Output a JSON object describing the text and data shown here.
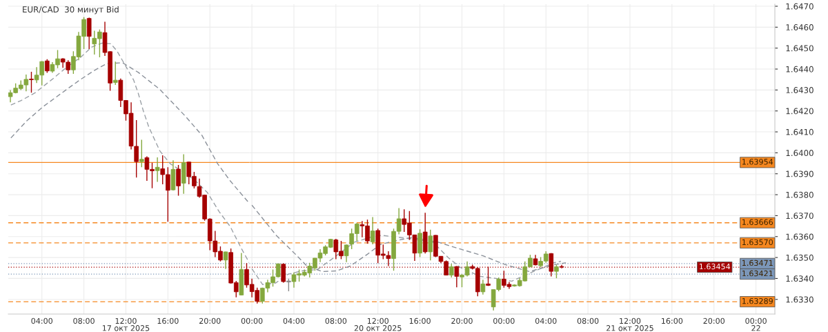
{
  "chart_data": [
    {
      "type": "candlestick",
      "title": "EUR/CAD  30 минут Bid",
      "x": [
        "2025-10-17T01:00",
        "2025-10-17T01:30",
        "2025-10-17T02:00",
        "2025-10-17T02:30",
        "2025-10-17T03:00",
        "2025-10-17T03:30",
        "2025-10-17T04:00",
        "2025-10-17T04:30",
        "2025-10-17T05:00",
        "2025-10-17T05:30",
        "2025-10-17T06:00",
        "2025-10-17T06:30",
        "2025-10-17T07:00",
        "2025-10-17T07:30",
        "2025-10-17T08:00",
        "2025-10-17T08:30",
        "2025-10-17T09:00",
        "2025-10-17T09:30",
        "2025-10-17T10:00",
        "2025-10-17T10:30",
        "2025-10-17T11:00",
        "2025-10-17T11:30",
        "2025-10-17T12:00",
        "2025-10-17T12:30",
        "2025-10-17T13:00",
        "2025-10-17T13:30",
        "2025-10-17T14:00",
        "2025-10-17T14:30",
        "2025-10-17T15:00",
        "2025-10-17T15:30",
        "2025-10-17T16:00",
        "2025-10-17T16:30",
        "2025-10-17T17:00",
        "2025-10-17T17:30",
        "2025-10-17T18:00",
        "2025-10-17T18:30",
        "2025-10-17T19:00",
        "2025-10-17T19:30",
        "2025-10-17T20:00",
        "2025-10-17T20:30",
        "2025-10-17T21:00",
        "2025-10-17T21:30",
        "2025-10-17T22:00",
        "2025-10-17T22:30",
        "2025-10-17T23:00",
        "2025-10-17T23:30"
      ],
      "ohlc": [
        [
          1.64268,
          1.643,
          1.64241,
          1.64287
        ],
        [
          1.64287,
          1.64332,
          1.64284,
          1.64309
        ],
        [
          1.64307,
          1.64346,
          1.643,
          1.64324
        ],
        [
          1.64324,
          1.64374,
          1.64294,
          1.64351
        ],
        [
          1.64352,
          1.64387,
          1.64287,
          1.64349
        ],
        [
          1.64348,
          1.64409,
          1.64333,
          1.64371
        ],
        [
          1.64371,
          1.64438,
          1.64322,
          1.64436
        ],
        [
          1.64439,
          1.64447,
          1.64382,
          1.64391
        ],
        [
          1.6439,
          1.64433,
          1.64382,
          1.64422
        ],
        [
          1.6442,
          1.64491,
          1.64404,
          1.64449
        ],
        [
          1.64449,
          1.64452,
          1.64406,
          1.64433
        ],
        [
          1.64433,
          1.64442,
          1.64377,
          1.64396
        ],
        [
          1.64396,
          1.64485,
          1.64377,
          1.6446
        ],
        [
          1.64458,
          1.64577,
          1.64442,
          1.64558
        ],
        [
          1.64556,
          1.64648,
          1.64496,
          1.64637
        ],
        [
          1.64642,
          1.64646,
          1.64496,
          1.64556
        ],
        [
          1.6452,
          1.64583,
          1.64469,
          1.64547
        ],
        [
          1.64545,
          1.64589,
          1.64456,
          1.64577
        ],
        [
          1.64574,
          1.64626,
          1.64463,
          1.64479
        ],
        [
          1.64483,
          1.64485,
          1.64296,
          1.64333
        ],
        [
          1.64336,
          1.64436,
          1.64324,
          1.64347
        ],
        [
          1.64347,
          1.64355,
          1.64219,
          1.6425
        ],
        [
          1.6425,
          1.64251,
          1.64154,
          1.64186
        ],
        [
          1.64189,
          1.64241,
          1.64016,
          1.64032
        ],
        [
          1.64031,
          1.64156,
          1.63882,
          1.63958
        ],
        [
          1.63958,
          1.64062,
          1.63931,
          1.63969
        ],
        [
          1.63977,
          1.63983,
          1.63866,
          1.63921
        ],
        [
          1.63921,
          1.63953,
          1.63831,
          1.63914
        ],
        [
          1.63915,
          1.63978,
          1.63861,
          1.63931
        ],
        [
          1.63924,
          1.63988,
          1.6385,
          1.63896
        ],
        [
          1.63896,
          1.63931,
          1.63671,
          1.63821
        ],
        [
          1.63823,
          1.63964,
          1.6382,
          1.63921
        ],
        [
          1.63922,
          1.63942,
          1.63795,
          1.63842
        ],
        [
          1.63855,
          1.63993,
          1.63804,
          1.63953
        ],
        [
          1.63956,
          1.63958,
          1.6385,
          1.63886
        ],
        [
          1.63888,
          1.63909,
          1.6383,
          1.63842
        ],
        [
          1.63839,
          1.63877,
          1.63785,
          1.63792
        ],
        [
          1.63798,
          1.638,
          1.63676,
          1.63684
        ],
        [
          1.63684,
          1.63687,
          1.63535,
          1.63579
        ],
        [
          1.63579,
          1.63627,
          1.63502,
          1.63527
        ],
        [
          1.6353,
          1.63553,
          1.63481,
          1.63488
        ],
        [
          1.63488,
          1.63528,
          1.63445,
          1.63527
        ],
        [
          1.63524,
          1.63543,
          1.63376,
          1.63378
        ],
        [
          1.6338,
          1.63388,
          1.6331,
          1.63336
        ],
        [
          1.63321,
          1.63522,
          1.63319,
          1.63443
        ],
        [
          1.63443,
          1.63473,
          1.63356,
          1.63369
        ]
      ],
      "colors": [
        "#84a83e",
        "#84a83e",
        "#84a83e",
        "#84a83e",
        "#a50000",
        "#84a83e",
        "#84a83e",
        "#a50000",
        "#84a83e",
        "#84a83e",
        "#a50000",
        "#a50000",
        "#84a83e",
        "#84a83e",
        "#84a83e",
        "#a50000",
        "#84a83e",
        "#84a83e",
        "#a50000",
        "#a50000",
        "#84a83e",
        "#a50000",
        "#a50000",
        "#a50000",
        "#a50000",
        "#84a83e",
        "#a50000",
        "#a50000",
        "#84a83e",
        "#a50000",
        "#a50000",
        "#84a83e",
        "#a50000",
        "#84a83e",
        "#a50000",
        "#a50000",
        "#a50000",
        "#a50000",
        "#a50000",
        "#a50000",
        "#a50000",
        "#84a83e",
        "#a50000",
        "#a50000",
        "#84a83e",
        "#a50000"
      ],
      "series": [
        {
          "type": "line",
          "color": "#9aa0a6",
          "x": [
            "2025-10-17T01:03",
            "2025-10-17T02:02",
            "2025-10-17T03:20",
            "2025-10-17T04:59",
            "2025-10-17T06:15",
            "2025-10-17T07:45",
            "2025-10-17T08:45",
            "2025-10-17T09:45",
            "2025-10-17T10:34",
            "2025-10-17T11:10",
            "2025-10-17T11:57",
            "2025-10-17T12:44",
            "2025-10-17T13:11",
            "2025-10-17T13:39",
            "2025-10-17T14:11",
            "2025-10-17T15:14",
            "2025-10-17T16:13",
            "2025-10-17T17:45",
            "2025-10-17T18:45",
            "2025-10-17T19:45",
            "2025-10-17T20:52",
            "2025-10-17T21:56",
            "2025-10-17T23:02",
            "2025-10-17T23:45"
          ],
          "values": [
            1.64228,
            1.6425,
            1.64286,
            1.64351,
            1.64404,
            1.64459,
            1.64505,
            1.64524,
            1.64521,
            1.64485,
            1.64417,
            1.64348,
            1.64283,
            1.64202,
            1.64123,
            1.64009,
            1.63948,
            1.63899,
            1.6386,
            1.63811,
            1.6372,
            1.63648,
            1.6354,
            1.63475
          ]
        },
        {
          "type": "line",
          "color": "#8a9099",
          "x": [
            "2025-10-17T01:03",
            "2025-10-17T02:34",
            "2025-10-17T04:08",
            "2025-10-17T06:22",
            "2025-10-17T07:37",
            "2025-10-17T08:55",
            "2025-10-17T10:10",
            "2025-10-17T11:41",
            "2025-10-17T13:11",
            "2025-10-17T15:14",
            "2025-10-17T17:43",
            "2025-10-17T19:14",
            "2025-10-17T20:44",
            "2025-10-17T21:56",
            "2025-10-17T23:45"
          ],
          "values": [
            1.64071,
            1.64153,
            1.64221,
            1.64303,
            1.64348,
            1.64391,
            1.64426,
            1.6443,
            1.64384,
            1.64303,
            1.64172,
            1.64084,
            1.63948,
            1.63866,
            1.63759
          ]
        }
      ],
      "line_style": "dashed",
      "xlim": [
        "2025-10-17T00:48",
        "2025-10-17T23:45"
      ],
      "xticks": [
        {
          "value": "2025-10-17T04:00",
          "label": "04:00"
        },
        {
          "value": "2025-10-17T08:00",
          "label": "08:00"
        },
        {
          "value": "2025-10-17T12:00",
          "label": "12:00\n17 окт 2025"
        },
        {
          "value": "2025-10-17T16:00",
          "label": "16:00"
        },
        {
          "value": "2025-10-17T20:00",
          "label": "20:00"
        }
      ],
      "ylim": [
        1.6323,
        1.6471
      ],
      "yticks": [
        1.633,
        1.634,
        1.635,
        1.636,
        1.637,
        1.638,
        1.639,
        1.64,
        1.641,
        1.642,
        1.643,
        1.644,
        1.645,
        1.646,
        1.647
      ],
      "tick_labels": "x",
      "ref_lines": [
        {
          "axis": "y",
          "value": 1.63954,
          "color": "#f5871f",
          "line_style": "solid"
        },
        {
          "axis": "y",
          "value": 1.63666,
          "color": "#f5871f",
          "line_style": "dashed"
        },
        {
          "axis": "y",
          "value": 1.6357,
          "color": "#f5871f",
          "line_style": "dashed"
        },
        {
          "axis": "y",
          "value": 1.63471,
          "color": "#7b96b8",
          "line_style": "dotted"
        },
        {
          "axis": "y",
          "value": 1.63454,
          "color": "#a50000",
          "line_style": "dotted"
        },
        {
          "axis": "y",
          "value": 1.63421,
          "color": "#7b96b8",
          "line_style": "dotted"
        },
        {
          "axis": "y",
          "value": 1.63289,
          "color": "#f5871f",
          "line_style": "dashed"
        }
      ],
      "grid": true
    },
    {
      "type": "candlestick",
      "x": [
        "2025-10-20T00:00",
        "2025-10-20T00:30",
        "2025-10-20T01:00",
        "2025-10-20T01:30",
        "2025-10-20T02:00",
        "2025-10-20T02:30",
        "2025-10-20T03:00",
        "2025-10-20T03:30",
        "2025-10-20T04:00",
        "2025-10-20T04:30",
        "2025-10-20T05:00",
        "2025-10-20T05:30",
        "2025-10-20T06:00",
        "2025-10-20T06:30",
        "2025-10-20T07:00",
        "2025-10-20T07:30",
        "2025-10-20T08:00",
        "2025-10-20T08:30",
        "2025-10-20T09:00",
        "2025-10-20T09:30",
        "2025-10-20T10:00",
        "2025-10-20T10:30",
        "2025-10-20T11:00",
        "2025-10-20T11:30",
        "2025-10-20T12:00",
        "2025-10-20T12:30",
        "2025-10-20T13:00",
        "2025-10-20T13:30",
        "2025-10-20T14:00",
        "2025-10-20T14:30",
        "2025-10-20T15:00",
        "2025-10-20T15:30",
        "2025-10-20T16:00",
        "2025-10-20T16:30",
        "2025-10-20T17:00",
        "2025-10-20T17:30",
        "2025-10-20T18:00",
        "2025-10-20T18:30",
        "2025-10-20T19:00",
        "2025-10-20T19:30",
        "2025-10-20T20:00",
        "2025-10-20T20:30",
        "2025-10-20T21:00",
        "2025-10-20T21:30",
        "2025-10-20T22:00",
        "2025-10-20T22:30",
        "2025-10-20T23:00",
        "2025-10-20T23:30",
        "2025-10-21T00:00",
        "2025-10-21T00:30",
        "2025-10-21T01:00",
        "2025-10-21T01:30",
        "2025-10-21T02:00",
        "2025-10-21T02:30",
        "2025-10-21T03:00",
        "2025-10-21T03:30",
        "2025-10-21T04:00",
        "2025-10-21T04:30",
        "2025-10-21T05:00",
        "2025-10-21T05:30"
      ],
      "ohlc": [
        [
          1.63372,
          1.63399,
          1.6331,
          1.63337
        ],
        [
          1.63343,
          1.63356,
          1.6328,
          1.63291
        ],
        [
          1.63291,
          1.63356,
          1.6328,
          1.63354
        ],
        [
          1.63354,
          1.63394,
          1.63334,
          1.6338
        ],
        [
          1.6338,
          1.63443,
          1.63361,
          1.63408
        ],
        [
          1.63408,
          1.63471,
          1.63405,
          1.6347
        ],
        [
          1.63468,
          1.63472,
          1.6338,
          1.63385
        ],
        [
          1.63383,
          1.63399,
          1.63339,
          1.63388
        ],
        [
          1.63385,
          1.63429,
          1.63356,
          1.63418
        ],
        [
          1.63416,
          1.63443,
          1.63385,
          1.63423
        ],
        [
          1.63416,
          1.63443,
          1.6341,
          1.6343
        ],
        [
          1.63426,
          1.63475,
          1.63405,
          1.63459
        ],
        [
          1.6345,
          1.63498,
          1.63437,
          1.63497
        ],
        [
          1.63497,
          1.6354,
          1.63478,
          1.63522
        ],
        [
          1.63519,
          1.63559,
          1.6351,
          1.63551
        ],
        [
          1.63549,
          1.63589,
          1.63546,
          1.63587
        ],
        [
          1.63584,
          1.63589,
          1.63492,
          1.63527
        ],
        [
          1.6353,
          1.63579,
          1.63492,
          1.63508
        ],
        [
          1.63508,
          1.63562,
          1.63478,
          1.6356
        ],
        [
          1.63564,
          1.63638,
          1.6354,
          1.63614
        ],
        [
          1.63614,
          1.63665,
          1.63579,
          1.6366
        ],
        [
          1.63657,
          1.63674,
          1.63597,
          1.63651
        ],
        [
          1.63651,
          1.63681,
          1.63566,
          1.63579
        ],
        [
          1.63575,
          1.63693,
          1.63563,
          1.63627
        ],
        [
          1.63629,
          1.63638,
          1.63473,
          1.63511
        ],
        [
          1.63517,
          1.63562,
          1.63492,
          1.6351
        ],
        [
          1.6351,
          1.6353,
          1.63459,
          1.63495
        ],
        [
          1.63495,
          1.63638,
          1.63437,
          1.63625
        ],
        [
          1.63625,
          1.63736,
          1.63611,
          1.63685
        ],
        [
          1.63685,
          1.6373,
          1.63622,
          1.63658
        ],
        [
          1.63665,
          1.63722,
          1.63584,
          1.63608
        ],
        [
          1.63608,
          1.63609,
          1.63484,
          1.63521
        ],
        [
          1.63521,
          1.63635,
          1.63502,
          1.63616
        ],
        [
          1.63622,
          1.63714,
          1.63519,
          1.63527
        ],
        [
          1.63527,
          1.63633,
          1.63486,
          1.63603
        ],
        [
          1.63606,
          1.63607,
          1.63502,
          1.63506
        ],
        [
          1.63506,
          1.63507,
          1.63473,
          1.63481
        ],
        [
          1.63481,
          1.63486,
          1.63415,
          1.63416
        ],
        [
          1.63416,
          1.6347,
          1.63405,
          1.63456
        ],
        [
          1.63457,
          1.63459,
          1.63358,
          1.6341
        ],
        [
          1.63407,
          1.63421,
          1.63358,
          1.63416
        ],
        [
          1.63416,
          1.63481,
          1.6341,
          1.63456
        ],
        [
          1.63457,
          1.63466,
          1.63443,
          1.63448
        ],
        [
          1.63448,
          1.63453,
          1.63315,
          1.63336
        ],
        [
          1.63336,
          1.63394,
          1.63323,
          1.63374
        ],
        [
          1.63374,
          1.63456,
          1.63364,
          1.63367
        ],
        [
          1.63264,
          1.63348,
          1.63247,
          1.63347
        ],
        [
          1.63347,
          1.63405,
          1.63339,
          1.63397
        ],
        [
          1.63397,
          1.63437,
          1.63356,
          1.63367
        ],
        [
          1.63372,
          1.63383,
          1.6335,
          1.63361
        ],
        [
          1.63364,
          1.63372,
          1.63361,
          1.63369
        ],
        [
          1.63365,
          1.63401,
          1.63361,
          1.63391
        ],
        [
          1.63388,
          1.63481,
          1.63386,
          1.63456
        ],
        [
          1.63456,
          1.63513,
          1.63453,
          1.63497
        ],
        [
          1.63494,
          1.63513,
          1.63462,
          1.63465
        ],
        [
          1.63461,
          1.63502,
          1.63453,
          1.63482
        ],
        [
          1.63483,
          1.6353,
          1.63475,
          1.63517
        ],
        [
          1.63519,
          1.63521,
          1.6341,
          1.63434
        ],
        [
          1.63434,
          1.63465,
          1.63401,
          1.63456
        ],
        [
          1.63457,
          1.63465,
          1.63448,
          1.63454
        ]
      ],
      "colors": [
        "#a50000",
        "#a50000",
        "#84a83e",
        "#84a83e",
        "#84a83e",
        "#84a83e",
        "#a50000",
        "#8a8a8a",
        "#84a83e",
        "#84a83e",
        "#84a83e",
        "#84a83e",
        "#84a83e",
        "#84a83e",
        "#84a83e",
        "#84a83e",
        "#a50000",
        "#a50000",
        "#84a83e",
        "#84a83e",
        "#84a83e",
        "#a50000",
        "#a50000",
        "#84a83e",
        "#a50000",
        "#a50000",
        "#a50000",
        "#84a83e",
        "#84a83e",
        "#a50000",
        "#a50000",
        "#a50000",
        "#84a83e",
        "#a50000",
        "#84a83e",
        "#a50000",
        "#a50000",
        "#a50000",
        "#84a83e",
        "#a50000",
        "#84a83e",
        "#84a83e",
        "#a50000",
        "#a50000",
        "#84a83e",
        "#a50000",
        "#84a83e",
        "#84a83e",
        "#a50000",
        "#a50000",
        "#84a83e",
        "#84a83e",
        "#84a83e",
        "#84a83e",
        "#a50000",
        "#84a83e",
        "#84a83e",
        "#a50000",
        "#84a83e",
        "#a50000"
      ],
      "series": [
        {
          "type": "line",
          "color": "#9aa0a6",
          "x": [
            "2025-10-20T00:00",
            "2025-10-20T01:01",
            "2025-10-20T02:15",
            "2025-10-20T03:26",
            "2025-10-20T04:45",
            "2025-10-20T06:15",
            "2025-10-20T07:46",
            "2025-10-20T09:45",
            "2025-10-20T11:15",
            "2025-10-20T12:22",
            "2025-10-20T13:57",
            "2025-10-20T15:15",
            "2025-10-20T17:15",
            "2025-10-20T18:44",
            "2025-10-20T19:52",
            "2025-10-20T21:45",
            "2025-10-20T23:15",
            "2025-10-21T00:45",
            "2025-10-21T01:45",
            "2025-10-21T03:17",
            "2025-10-21T04:45",
            "2025-10-21T05:26"
          ],
          "values": [
            1.63446,
            1.63371,
            1.63378,
            1.6342,
            1.63436,
            1.63443,
            1.63498,
            1.63573,
            1.63596,
            1.63606,
            1.63596,
            1.63589,
            1.63573,
            1.63498,
            1.63452,
            1.6341,
            1.634,
            1.63387,
            1.6341,
            1.63443,
            1.63475,
            1.63482
          ]
        },
        {
          "type": "line",
          "color": "#8a9099",
          "x": [
            "2025-10-20T00:00",
            "2025-10-20T02:19",
            "2025-10-20T04:06",
            "2025-10-20T05:15",
            "2025-10-20T06:43",
            "2025-10-20T08:02",
            "2025-10-20T09:21",
            "2025-10-20T11:04",
            "2025-10-20T12:15",
            "2025-10-20T13:57",
            "2025-10-20T15:15",
            "2025-10-20T17:45",
            "2025-10-20T19:52",
            "2025-10-20T22:01",
            "2025-10-21T00:11",
            "2025-10-21T02:25",
            "2025-10-21T04:45",
            "2025-10-21T05:54"
          ],
          "values": [
            1.6375,
            1.63606,
            1.63518,
            1.63459,
            1.63433,
            1.63436,
            1.63459,
            1.63518,
            1.63563,
            1.63583,
            1.63596,
            1.63573,
            1.6354,
            1.63508,
            1.63465,
            1.63433,
            1.63465,
            1.63475
          ]
        }
      ],
      "line_style": "dashed",
      "xlim": [
        "2025-10-19T23:45",
        "2025-10-22T01:48"
      ],
      "xticks": [
        {
          "value": "2025-10-20T00:00",
          "label": "00:00"
        },
        {
          "value": "2025-10-20T04:00",
          "label": "04:00"
        },
        {
          "value": "2025-10-20T08:00",
          "label": "08:00"
        },
        {
          "value": "2025-10-20T12:00",
          "label": "12:00\n20 окт 2025"
        },
        {
          "value": "2025-10-20T16:00",
          "label": "16:00"
        },
        {
          "value": "2025-10-20T20:00",
          "label": "20:00"
        },
        {
          "value": "2025-10-21T00:00",
          "label": "00:00"
        },
        {
          "value": "2025-10-21T04:00",
          "label": "04:00"
        },
        {
          "value": "2025-10-21T08:00",
          "label": "08:00"
        },
        {
          "value": "2025-10-21T12:00",
          "label": "12:00\n21 окт 2025"
        },
        {
          "value": "2025-10-21T16:00",
          "label": "16:00"
        },
        {
          "value": "2025-10-21T20:00",
          "label": "20:00"
        },
        {
          "value": "2025-10-22T00:00",
          "label": "00:00\n22"
        }
      ],
      "ylim": [
        1.6323,
        1.6471
      ],
      "yticks": [
        {
          "value": 1.633,
          "label": "1.6330"
        },
        {
          "value": 1.634,
          "label": "1.6340"
        },
        {
          "value": 1.635,
          "label": "1.6350"
        },
        {
          "value": 1.636,
          "label": "1.6360"
        },
        {
          "value": 1.637,
          "label": "1.6370"
        },
        {
          "value": 1.638,
          "label": "1.6380"
        },
        {
          "value": 1.639,
          "label": "1.6390"
        },
        {
          "value": 1.64,
          "label": "1.6400"
        },
        {
          "value": 1.641,
          "label": "1.6410"
        },
        {
          "value": 1.642,
          "label": "1.6420"
        },
        {
          "value": 1.643,
          "label": "1.6430"
        },
        {
          "value": 1.644,
          "label": "1.6440"
        },
        {
          "value": 1.645,
          "label": "1.6450"
        },
        {
          "value": 1.646,
          "label": "1.6460"
        },
        {
          "value": 1.647,
          "label": "1.6470"
        }
      ],
      "ref_lines": [
        {
          "axis": "y",
          "value": 1.63954,
          "label": "1.63954",
          "color": "#f5871f",
          "line_style": "solid"
        },
        {
          "axis": "y",
          "value": 1.63666,
          "label": "1.63666",
          "color": "#f5871f",
          "line_style": "dashed"
        },
        {
          "axis": "y",
          "value": 1.6357,
          "label": "1.63570",
          "color": "#f5871f",
          "line_style": "dashed"
        },
        {
          "axis": "y",
          "value": 1.63471,
          "label": "1.63471",
          "color": "#7b96b8",
          "line_style": "dotted"
        },
        {
          "axis": "y",
          "value": 1.63454,
          "label": "1.63454",
          "color": "#a50000",
          "line_style": "dotted"
        },
        {
          "axis": "y",
          "value": 1.63421,
          "label": "1.63421",
          "color": "#7b96b8",
          "line_style": "dotted"
        },
        {
          "axis": "y",
          "value": 1.63289,
          "label": "1.63289",
          "color": "#f5871f",
          "line_style": "dashed"
        }
      ],
      "grid": true
    }
  ]
}
